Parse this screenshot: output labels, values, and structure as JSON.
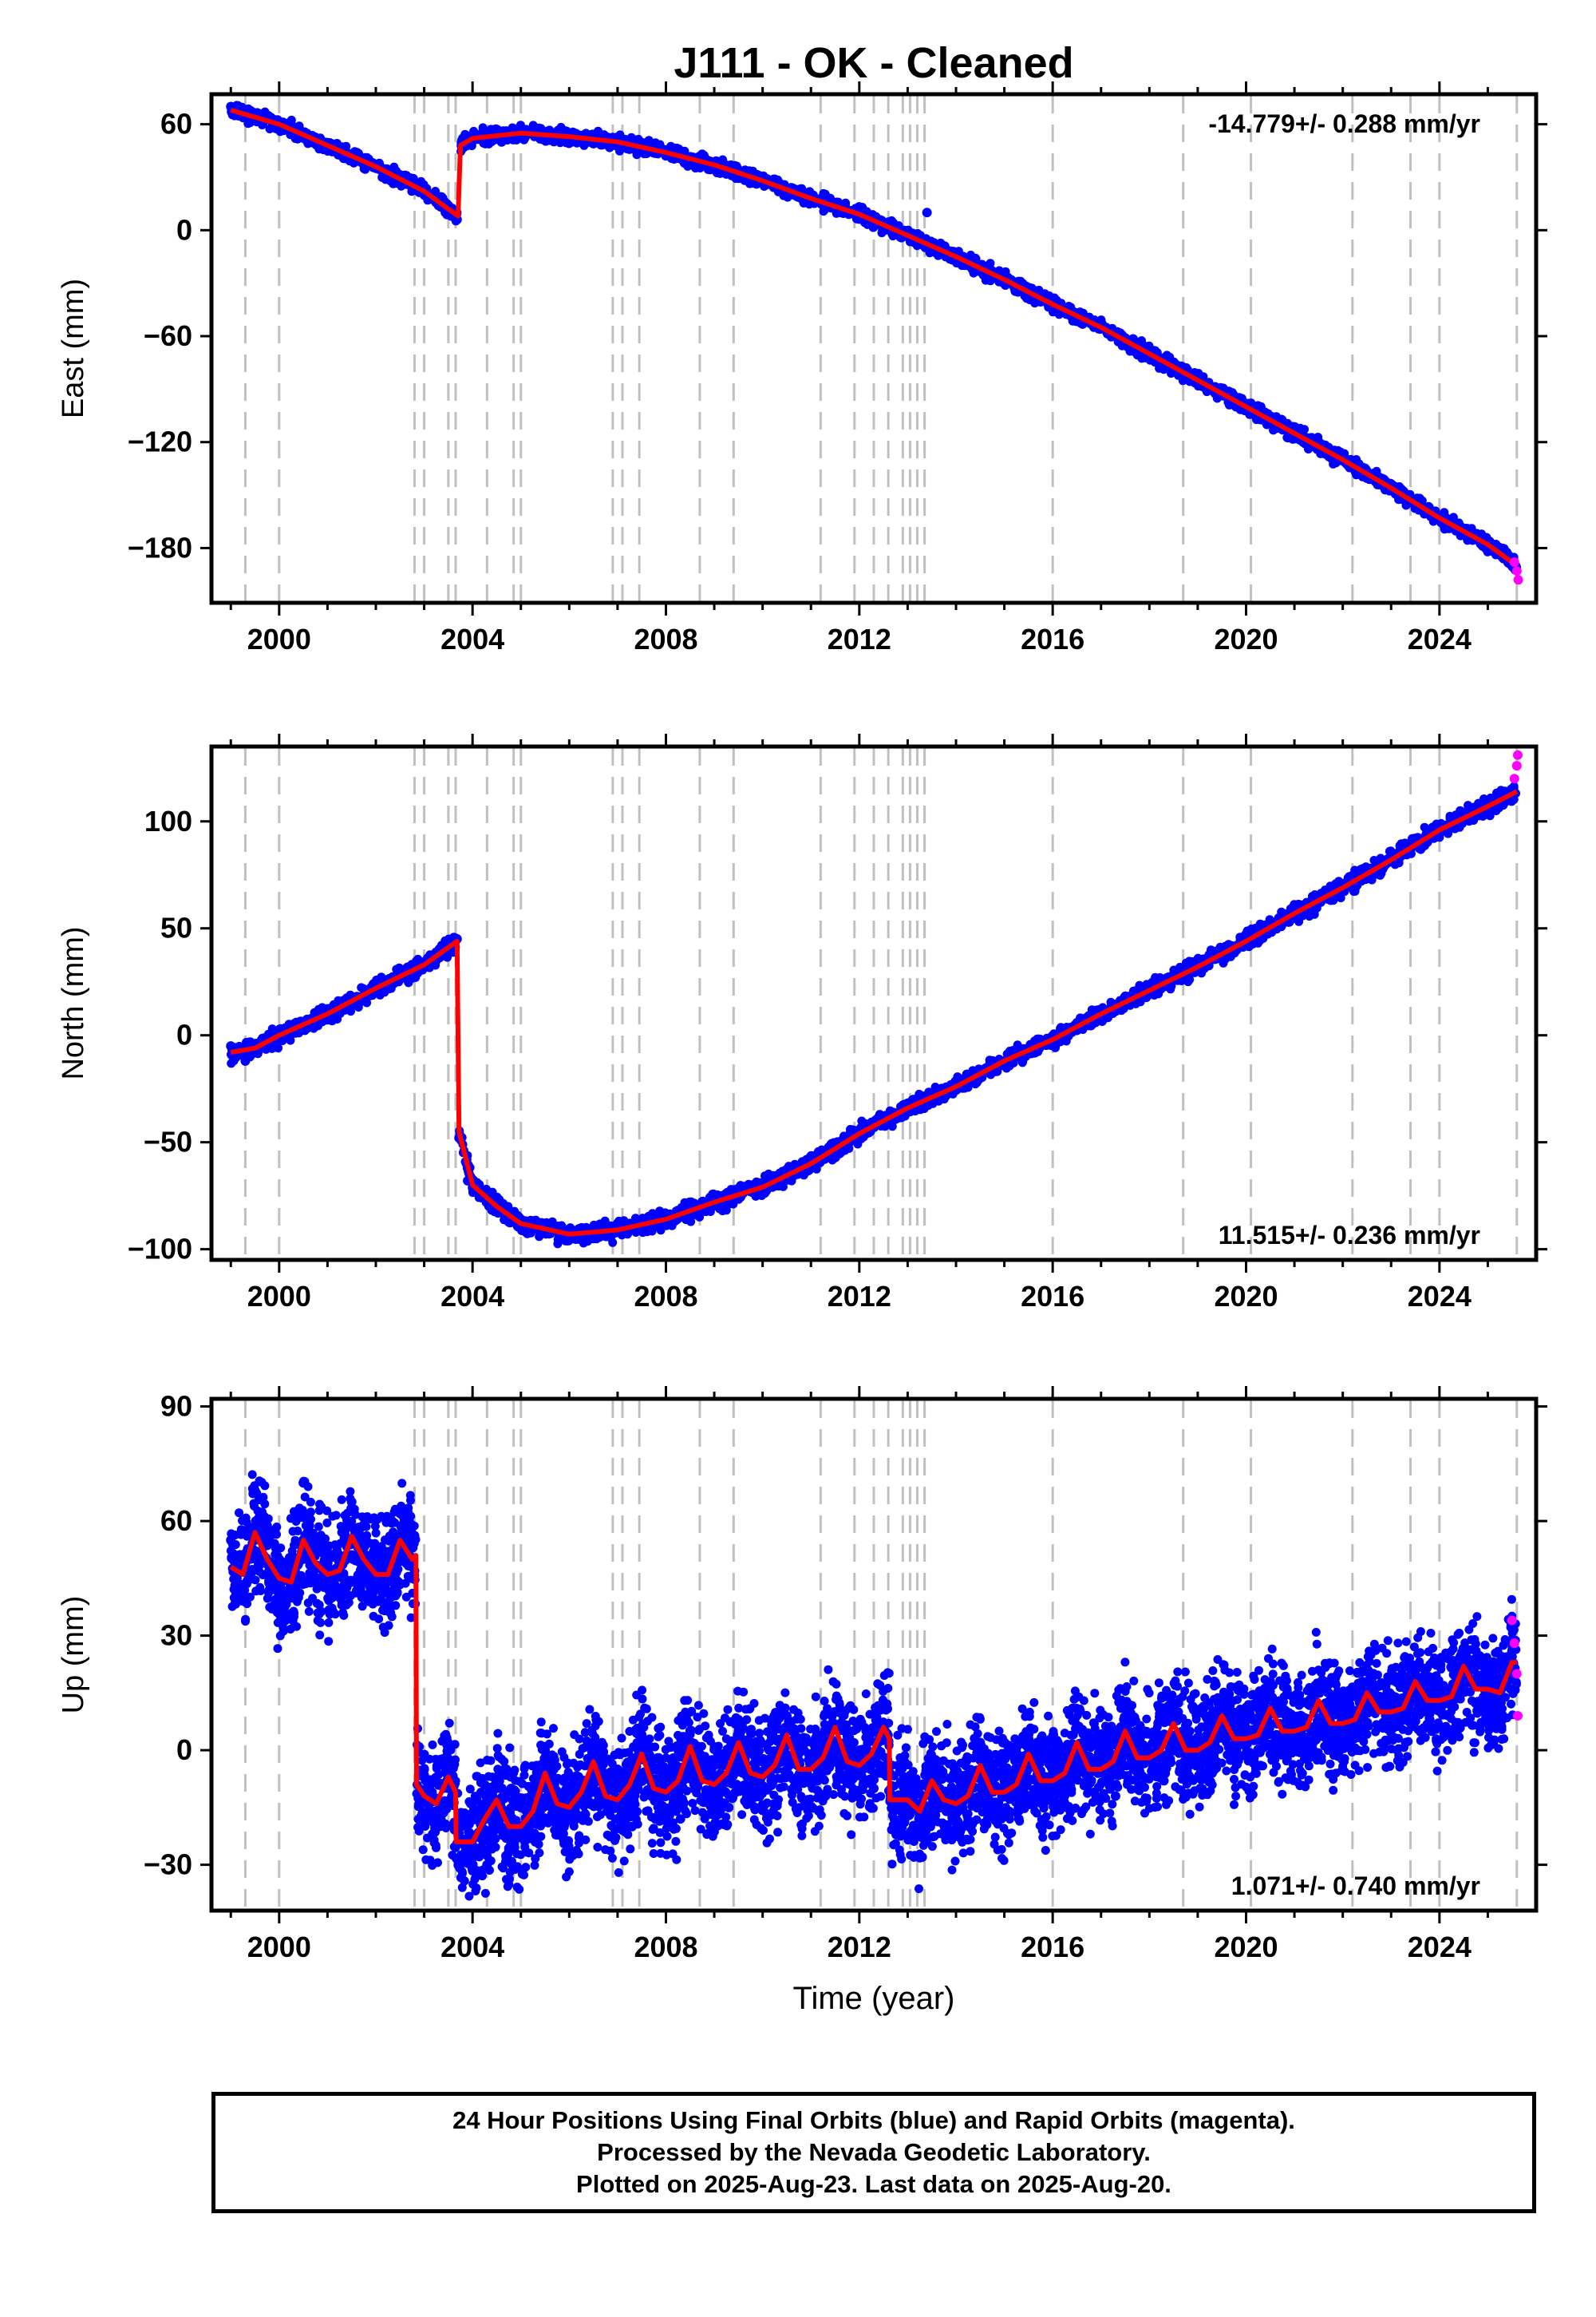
{
  "title": "J111  - OK - Cleaned",
  "xlabel": "Time (year)",
  "x_ticks": [
    "2000",
    "2004",
    "2008",
    "2012",
    "2016",
    "2020",
    "2024"
  ],
  "colors": {
    "final": "#0000ff",
    "rapid": "#ff00ff",
    "model": "#ff0000",
    "steps": "#c0c0c0"
  },
  "footer": {
    "line1": "24 Hour Positions Using Final Orbits (blue) and Rapid Orbits (magenta).",
    "line2": "Processed by the Nevada Geodetic Laboratory.",
    "line3": "Plotted on 2025-Aug-23. Last data on 2025-Aug-20."
  },
  "chart_data": [
    {
      "type": "scatter",
      "name": "east",
      "ylabel": "East (mm)",
      "rate_label": "-14.779+/- 0.288 mm/yr",
      "rate_position": "top-right",
      "xlim": [
        1998.6,
        2026.0
      ],
      "ylim": [
        -211,
        77
      ],
      "y_ticks": [
        60,
        0,
        -60,
        -120,
        -180
      ],
      "step_epochs": [
        1999.3,
        2000.0,
        2002.8,
        2003.0,
        2003.5,
        2003.65,
        2004.3,
        2004.85,
        2005.0,
        2006.9,
        2007.1,
        2007.45,
        2008.7,
        2009.4,
        2011.2,
        2011.9,
        2012.3,
        2012.6,
        2012.9,
        2013.05,
        2013.2,
        2013.35,
        2016.0,
        2018.7,
        2020.1,
        2022.2,
        2023.4,
        2024.0,
        2025.6
      ],
      "model_line": {
        "x": [
          1999.0,
          2000.0,
          2001.0,
          2002.0,
          2003.0,
          2003.7,
          2003.75,
          2004.0,
          2005.0,
          2006.0,
          2007.0,
          2008.0,
          2009.0,
          2010.0,
          2011.0,
          2012.0,
          2013.0,
          2014.0,
          2015.0,
          2016.0,
          2017.0,
          2018.0,
          2019.0,
          2020.0,
          2021.0,
          2022.0,
          2023.0,
          2024.0,
          2025.0,
          2025.6
        ],
        "y": [
          68,
          60,
          48,
          36,
          22,
          8,
          48,
          52,
          55,
          53,
          50,
          44,
          37,
          28,
          18,
          9,
          -3,
          -15,
          -28,
          -42,
          -55,
          -70,
          -85,
          -100,
          -115,
          -130,
          -146,
          -163,
          -178,
          -190
        ]
      },
      "final_points_x": [
        1999.0,
        1999.5,
        2000.0,
        2000.5,
        2001.0,
        2001.5,
        2002.0,
        2002.5,
        2003.0,
        2003.5,
        2003.68,
        2003.8,
        2004.2,
        2004.6,
        2005.0,
        2005.5,
        2006.0,
        2006.5,
        2007.0,
        2007.5,
        2008.0,
        2008.5,
        2009.0,
        2009.5,
        2010.0,
        2010.5,
        2011.0,
        2011.5,
        2012.0,
        2012.5,
        2013.0,
        2013.4,
        2013.5,
        2014.0,
        2014.5,
        2015.0,
        2015.5,
        2016.0,
        2016.5,
        2017.0,
        2017.5,
        2018.0,
        2018.5,
        2019.0,
        2019.5,
        2020.0,
        2020.5,
        2021.0,
        2021.5,
        2022.0,
        2022.5,
        2023.0,
        2023.5,
        2024.0,
        2024.5,
        2025.0,
        2025.5
      ],
      "final_points_y": [
        70,
        64,
        59,
        53,
        48,
        42,
        36,
        30,
        22,
        14,
        6,
        52,
        55,
        50,
        57,
        54,
        53,
        49,
        50,
        47,
        44,
        40,
        37,
        32,
        28,
        23,
        18,
        12,
        9,
        3,
        -3,
        10,
        -9,
        -15,
        -22,
        -28,
        -35,
        -42,
        -49,
        -55,
        -63,
        -70,
        -78,
        -85,
        -93,
        -100,
        -108,
        -115,
        -122,
        -130,
        -138,
        -146,
        -154,
        -163,
        -170,
        -178,
        -186
      ],
      "rapid_points_x": [
        2025.55,
        2025.6,
        2025.63
      ],
      "rapid_points_y": [
        -188,
        -193,
        -198
      ]
    },
    {
      "type": "scatter",
      "name": "north",
      "ylabel": "North (mm)",
      "rate_label": "11.515+/- 0.236 mm/yr",
      "rate_position": "bottom-right",
      "xlim": [
        1998.6,
        2026.0
      ],
      "ylim": [
        -105,
        135
      ],
      "y_ticks": [
        100,
        50,
        0,
        -50,
        -100
      ],
      "step_epochs": [
        1999.3,
        2000.0,
        2002.8,
        2003.0,
        2003.5,
        2003.65,
        2004.3,
        2004.85,
        2005.0,
        2006.9,
        2007.1,
        2007.45,
        2008.7,
        2009.4,
        2011.2,
        2011.9,
        2012.3,
        2012.6,
        2012.9,
        2013.05,
        2013.2,
        2013.35,
        2016.0,
        2018.7,
        2020.1,
        2022.2,
        2023.4,
        2024.0,
        2025.6
      ],
      "model_line": {
        "x": [
          1999.0,
          1999.5,
          2000.0,
          2001.0,
          2002.0,
          2003.0,
          2003.68,
          2003.72,
          2004.0,
          2004.5,
          2005.0,
          2006.0,
          2007.0,
          2008.0,
          2009.0,
          2010.0,
          2011.0,
          2012.0,
          2013.0,
          2014.0,
          2015.0,
          2016.0,
          2017.0,
          2018.0,
          2019.0,
          2020.0,
          2021.0,
          2022.0,
          2023.0,
          2024.0,
          2025.0,
          2025.6
        ],
        "y": [
          -8,
          -6,
          0,
          10,
          22,
          33,
          44,
          -45,
          -70,
          -80,
          -88,
          -93,
          -91,
          -86,
          -78,
          -71,
          -60,
          -46,
          -34,
          -24,
          -12,
          -2,
          10,
          21,
          32,
          44,
          57,
          69,
          82,
          96,
          107,
          114
        ]
      },
      "final_points_x": [
        1999.0,
        1999.3,
        1999.6,
        2000.0,
        2000.5,
        2001.0,
        2001.5,
        2002.0,
        2002.5,
        2003.0,
        2003.4,
        2003.68,
        2003.72,
        2003.9,
        2004.2,
        2004.6,
        2005.0,
        2005.5,
        2006.0,
        2006.5,
        2007.0,
        2007.5,
        2008.0,
        2008.5,
        2009.0,
        2009.5,
        2010.0,
        2010.5,
        2011.0,
        2011.5,
        2012.0,
        2012.5,
        2013.0,
        2013.5,
        2014.0,
        2014.5,
        2015.0,
        2015.5,
        2016.0,
        2016.5,
        2017.0,
        2017.5,
        2018.0,
        2018.5,
        2019.0,
        2019.5,
        2020.0,
        2020.5,
        2021.0,
        2021.5,
        2022.0,
        2022.5,
        2023.0,
        2023.5,
        2024.0,
        2024.5,
        2025.0,
        2025.5
      ],
      "final_points_y": [
        -5,
        -12,
        -4,
        1,
        6,
        11,
        16,
        22,
        28,
        33,
        38,
        45,
        -48,
        -68,
        -76,
        -82,
        -86,
        -91,
        -93,
        -95,
        -92,
        -89,
        -86,
        -82,
        -78,
        -74,
        -71,
        -66,
        -60,
        -53,
        -46,
        -40,
        -34,
        -29,
        -24,
        -18,
        -12,
        -7,
        -2,
        4,
        10,
        15,
        21,
        27,
        32,
        38,
        44,
        50,
        57,
        63,
        69,
        75,
        82,
        89,
        96,
        102,
        107,
        112
      ],
      "rapid_points_x": [
        2025.55,
        2025.6,
        2025.62
      ],
      "rapid_points_y": [
        120,
        126,
        131
      ]
    },
    {
      "type": "scatter",
      "name": "up",
      "ylabel": "Up (mm)",
      "rate_label": "1.071+/- 0.740 mm/yr",
      "rate_position": "bottom-right",
      "xlim": [
        1998.6,
        2026.0
      ],
      "ylim": [
        -42,
        92
      ],
      "y_ticks": [
        90,
        60,
        30,
        0,
        -30
      ],
      "step_epochs": [
        1999.3,
        2000.0,
        2002.8,
        2003.0,
        2003.5,
        2003.65,
        2004.3,
        2004.85,
        2005.0,
        2006.9,
        2007.1,
        2007.45,
        2008.7,
        2009.4,
        2011.2,
        2011.9,
        2012.3,
        2012.6,
        2012.9,
        2013.05,
        2013.2,
        2013.35,
        2016.0,
        2018.7,
        2020.1,
        2022.2,
        2023.4,
        2024.0,
        2025.6
      ],
      "model_line": {
        "x": [
          1999.0,
          1999.25,
          1999.5,
          1999.75,
          2000.0,
          2000.25,
          2000.5,
          2000.75,
          2001.0,
          2001.25,
          2001.5,
          2001.75,
          2002.0,
          2002.25,
          2002.5,
          2002.75,
          2002.83,
          2002.84,
          2003.0,
          2003.25,
          2003.5,
          2003.65,
          2003.66,
          2004.0,
          2004.25,
          2004.5,
          2004.75,
          2005.0,
          2005.25,
          2005.5,
          2005.75,
          2006.0,
          2006.25,
          2006.5,
          2006.75,
          2007.0,
          2007.25,
          2007.5,
          2007.75,
          2008.0,
          2008.25,
          2008.5,
          2008.75,
          2009.0,
          2009.25,
          2009.5,
          2009.75,
          2010.0,
          2010.25,
          2010.5,
          2010.75,
          2011.0,
          2011.25,
          2011.5,
          2011.75,
          2012.0,
          2012.25,
          2012.5,
          2012.62,
          2012.63,
          2013.0,
          2013.25,
          2013.5,
          2013.75,
          2014.0,
          2014.25,
          2014.5,
          2014.75,
          2015.0,
          2015.25,
          2015.5,
          2015.75,
          2016.0,
          2016.25,
          2016.5,
          2016.75,
          2017.0,
          2017.25,
          2017.5,
          2017.75,
          2018.0,
          2018.25,
          2018.5,
          2018.75,
          2019.0,
          2019.25,
          2019.5,
          2019.75,
          2020.0,
          2020.25,
          2020.5,
          2020.75,
          2021.0,
          2021.25,
          2021.5,
          2021.75,
          2022.0,
          2022.25,
          2022.5,
          2022.75,
          2023.0,
          2023.25,
          2023.5,
          2023.75,
          2024.0,
          2024.25,
          2024.5,
          2024.75,
          2025.0,
          2025.25,
          2025.5,
          2025.6
        ],
        "y": [
          48,
          46,
          57,
          50,
          45,
          44,
          55,
          49,
          46,
          47,
          56,
          50,
          46,
          46,
          55,
          50,
          51,
          -9,
          -12,
          -14,
          -7,
          -11,
          -24,
          -24,
          -18,
          -13,
          -20,
          -20,
          -16,
          -6,
          -14,
          -15,
          -11,
          -3,
          -12,
          -13,
          -9,
          -1,
          -10,
          -11,
          -8,
          1,
          -8,
          -9,
          -6,
          2,
          -6,
          -7,
          -4,
          4,
          -5,
          -5,
          -2,
          6,
          -3,
          -4,
          -1,
          6,
          3,
          -13,
          -13,
          -16,
          -8,
          -13,
          -14,
          -12,
          -4,
          -11,
          -11,
          -9,
          -1,
          -8,
          -8,
          -6,
          2,
          -5,
          -5,
          -3,
          5,
          -2,
          -2,
          0,
          7,
          0,
          0,
          2,
          9,
          3,
          3,
          4,
          11,
          5,
          5,
          6,
          13,
          7,
          7,
          8,
          15,
          10,
          10,
          11,
          18,
          13,
          13,
          14,
          22,
          16,
          16,
          15,
          23,
          23
        ]
      },
      "final_points_x": [
        1999.0,
        1999.3,
        1999.5,
        1999.8,
        2000.0,
        2000.3,
        2000.5,
        2000.8,
        2001.0,
        2001.3,
        2001.5,
        2001.8,
        2002.0,
        2002.3,
        2002.5,
        2002.8,
        2003.0,
        2003.3,
        2003.5,
        2003.8,
        2004.0,
        2004.3,
        2004.5,
        2004.8,
        2005.0,
        2005.3,
        2005.5,
        2005.8,
        2006.0,
        2006.3,
        2006.5,
        2006.8,
        2007.0,
        2007.3,
        2007.5,
        2007.8,
        2008.0,
        2008.3,
        2008.5,
        2008.8,
        2009.0,
        2009.3,
        2009.5,
        2009.8,
        2010.0,
        2010.3,
        2010.5,
        2010.8,
        2011.0,
        2011.3,
        2011.5,
        2011.8,
        2012.0,
        2012.3,
        2012.5,
        2012.8,
        2013.0,
        2013.3,
        2013.5,
        2013.8,
        2014.0,
        2014.3,
        2014.5,
        2014.8,
        2015.0,
        2015.3,
        2015.5,
        2015.8,
        2016.0,
        2016.3,
        2016.5,
        2016.8,
        2017.0,
        2017.3,
        2017.5,
        2017.8,
        2018.0,
        2018.3,
        2018.5,
        2018.8,
        2019.0,
        2019.3,
        2019.5,
        2019.8,
        2020.0,
        2020.3,
        2020.5,
        2020.8,
        2021.0,
        2021.3,
        2021.5,
        2021.8,
        2022.0,
        2022.3,
        2022.5,
        2022.8,
        2023.0,
        2023.3,
        2023.5,
        2023.8,
        2024.0,
        2024.3,
        2024.5,
        2024.8,
        2025.0,
        2025.3,
        2025.5
      ],
      "final_points_y": [
        55,
        40,
        68,
        42,
        50,
        35,
        70,
        45,
        48,
        38,
        65,
        44,
        50,
        36,
        62,
        47,
        -5,
        -20,
        -10,
        -28,
        -25,
        -30,
        -8,
        -22,
        -15,
        -24,
        0,
        -12,
        -10,
        -18,
        2,
        -15,
        -5,
        -20,
        4,
        -10,
        -6,
        -18,
        5,
        -12,
        -4,
        -15,
        8,
        -10,
        -3,
        -14,
        9,
        -8,
        -2,
        -12,
        10,
        -6,
        0,
        -10,
        12,
        -4,
        -10,
        -28,
        -2,
        -16,
        -12,
        -20,
        2,
        -14,
        -8,
        -18,
        4,
        -10,
        -6,
        -15,
        6,
        -8,
        -3,
        -12,
        8,
        -4,
        -1,
        -8,
        10,
        -2,
        1,
        -6,
        12,
        0,
        3,
        -4,
        14,
        2,
        5,
        -2,
        16,
        4,
        7,
        0,
        18,
        6,
        9,
        2,
        20,
        8,
        12,
        5,
        24,
        12,
        14,
        8,
        26
      ],
      "rapid_points_x": [
        2025.5,
        2025.55,
        2025.6,
        2025.62
      ],
      "rapid_points_y": [
        34,
        28,
        20,
        9
      ]
    }
  ]
}
